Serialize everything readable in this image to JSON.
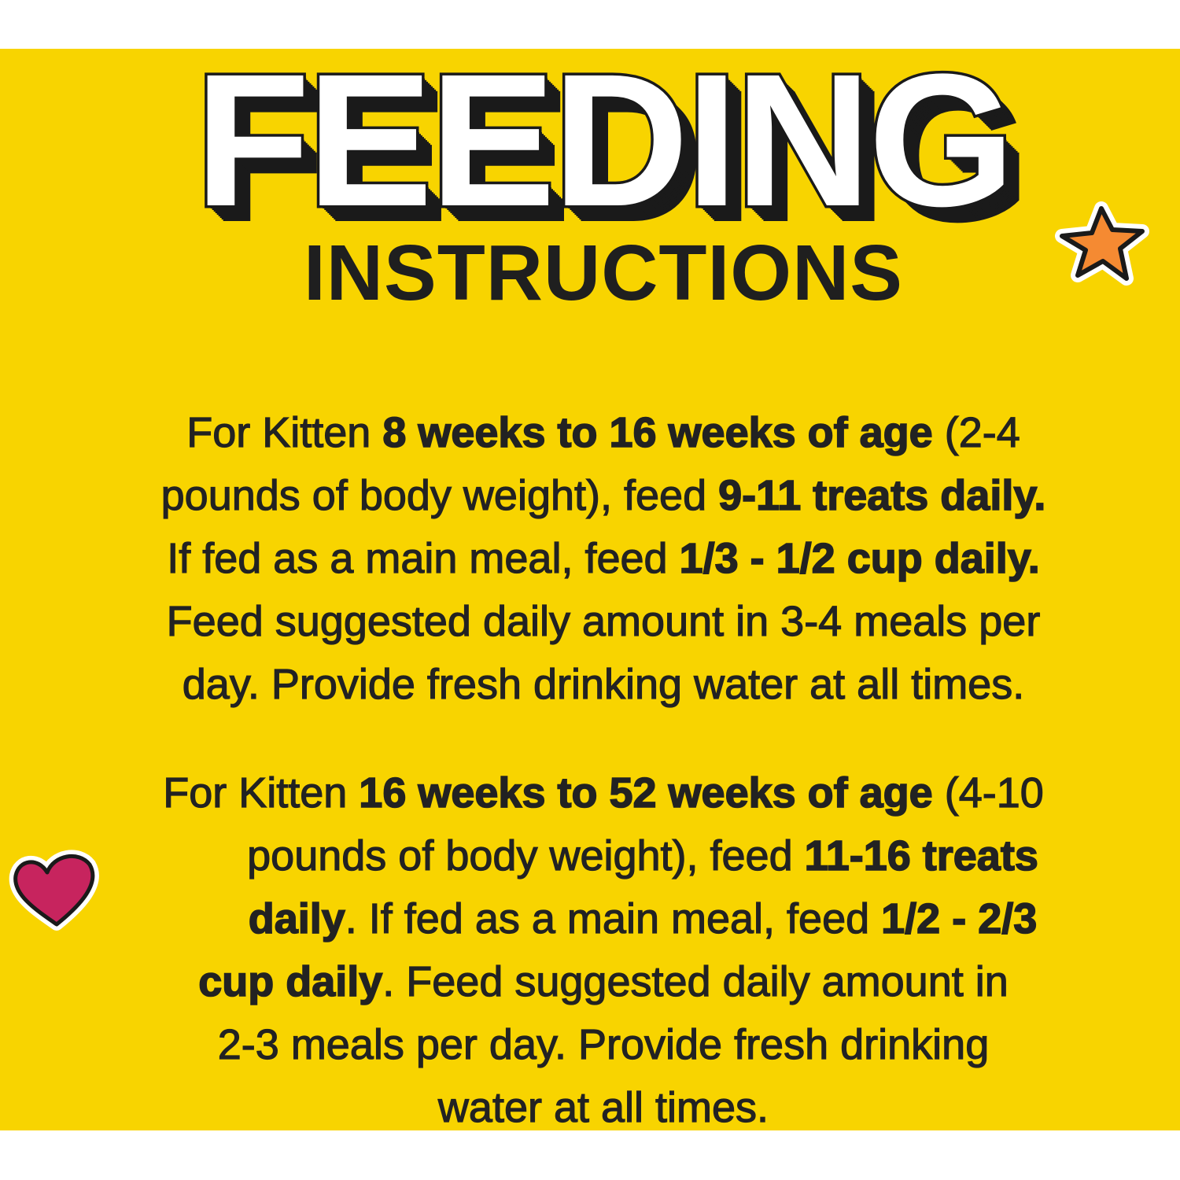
{
  "title": "FEEDING",
  "subtitle": "INSTRUCTIONS",
  "colors": {
    "background": "#F8D400",
    "text": "#222222",
    "star": "#F58A32",
    "heart": "#C7245E"
  },
  "icons": {
    "star": "star-icon",
    "heart": "heart-icon"
  },
  "paragraphs": [
    {
      "lines": [
        [
          {
            "t": "For Kitten ",
            "b": false
          },
          {
            "t": "8 weeks to 16 weeks of age",
            "b": true
          },
          {
            "t": " (2-4",
            "b": false
          }
        ],
        [
          {
            "t": "pounds of body weight), feed ",
            "b": false
          },
          {
            "t": "9-11 treats daily.",
            "b": true
          }
        ],
        [
          {
            "t": "If fed as a main meal, feed ",
            "b": false
          },
          {
            "t": "1/3 - 1/2 cup daily.",
            "b": true
          }
        ],
        [
          {
            "t": "Feed suggested daily amount in 3-4 meals per",
            "b": false
          }
        ],
        [
          {
            "t": "day. Provide fresh drinking water at all times.",
            "b": false
          }
        ]
      ]
    },
    {
      "lines": [
        [
          {
            "t": "For Kitten ",
            "b": false
          },
          {
            "t": "16 weeks to 52 weeks of age",
            "b": true
          },
          {
            "t": " (4-10",
            "b": false
          }
        ],
        [
          {
            "t": "pounds of body weight), feed ",
            "b": false
          },
          {
            "t": "11-16 treats",
            "b": true
          }
        ],
        [
          {
            "t": "daily",
            "b": true
          },
          {
            "t": ". If fed as a main meal, feed ",
            "b": false
          },
          {
            "t": "1/2 - 2/3",
            "b": true
          }
        ],
        [
          {
            "t": "cup daily",
            "b": true
          },
          {
            "t": ". Feed suggested daily amount in",
            "b": false
          }
        ],
        [
          {
            "t": "2-3 meals per day. Provide fresh drinking",
            "b": false
          }
        ],
        [
          {
            "t": "water at all times.",
            "b": false
          }
        ]
      ]
    }
  ]
}
